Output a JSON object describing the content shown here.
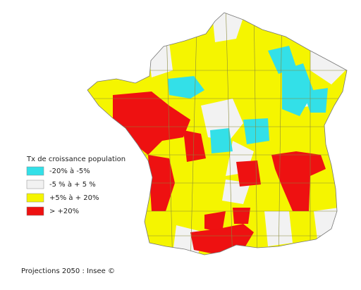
{
  "legend": {
    "title": "Tx de croissance population",
    "items": [
      {
        "label": "-20% à  -5%",
        "color": "#33e0e8"
      },
      {
        "label": "-5 % à + 5 %",
        "color": "#f2f2f2"
      },
      {
        "label": "+5% à + 20%",
        "color": "#f5f500"
      },
      {
        "label": "> +20%",
        "color": "#ee1111"
      }
    ]
  },
  "footer": "Projections 2050 : Insee ©"
}
